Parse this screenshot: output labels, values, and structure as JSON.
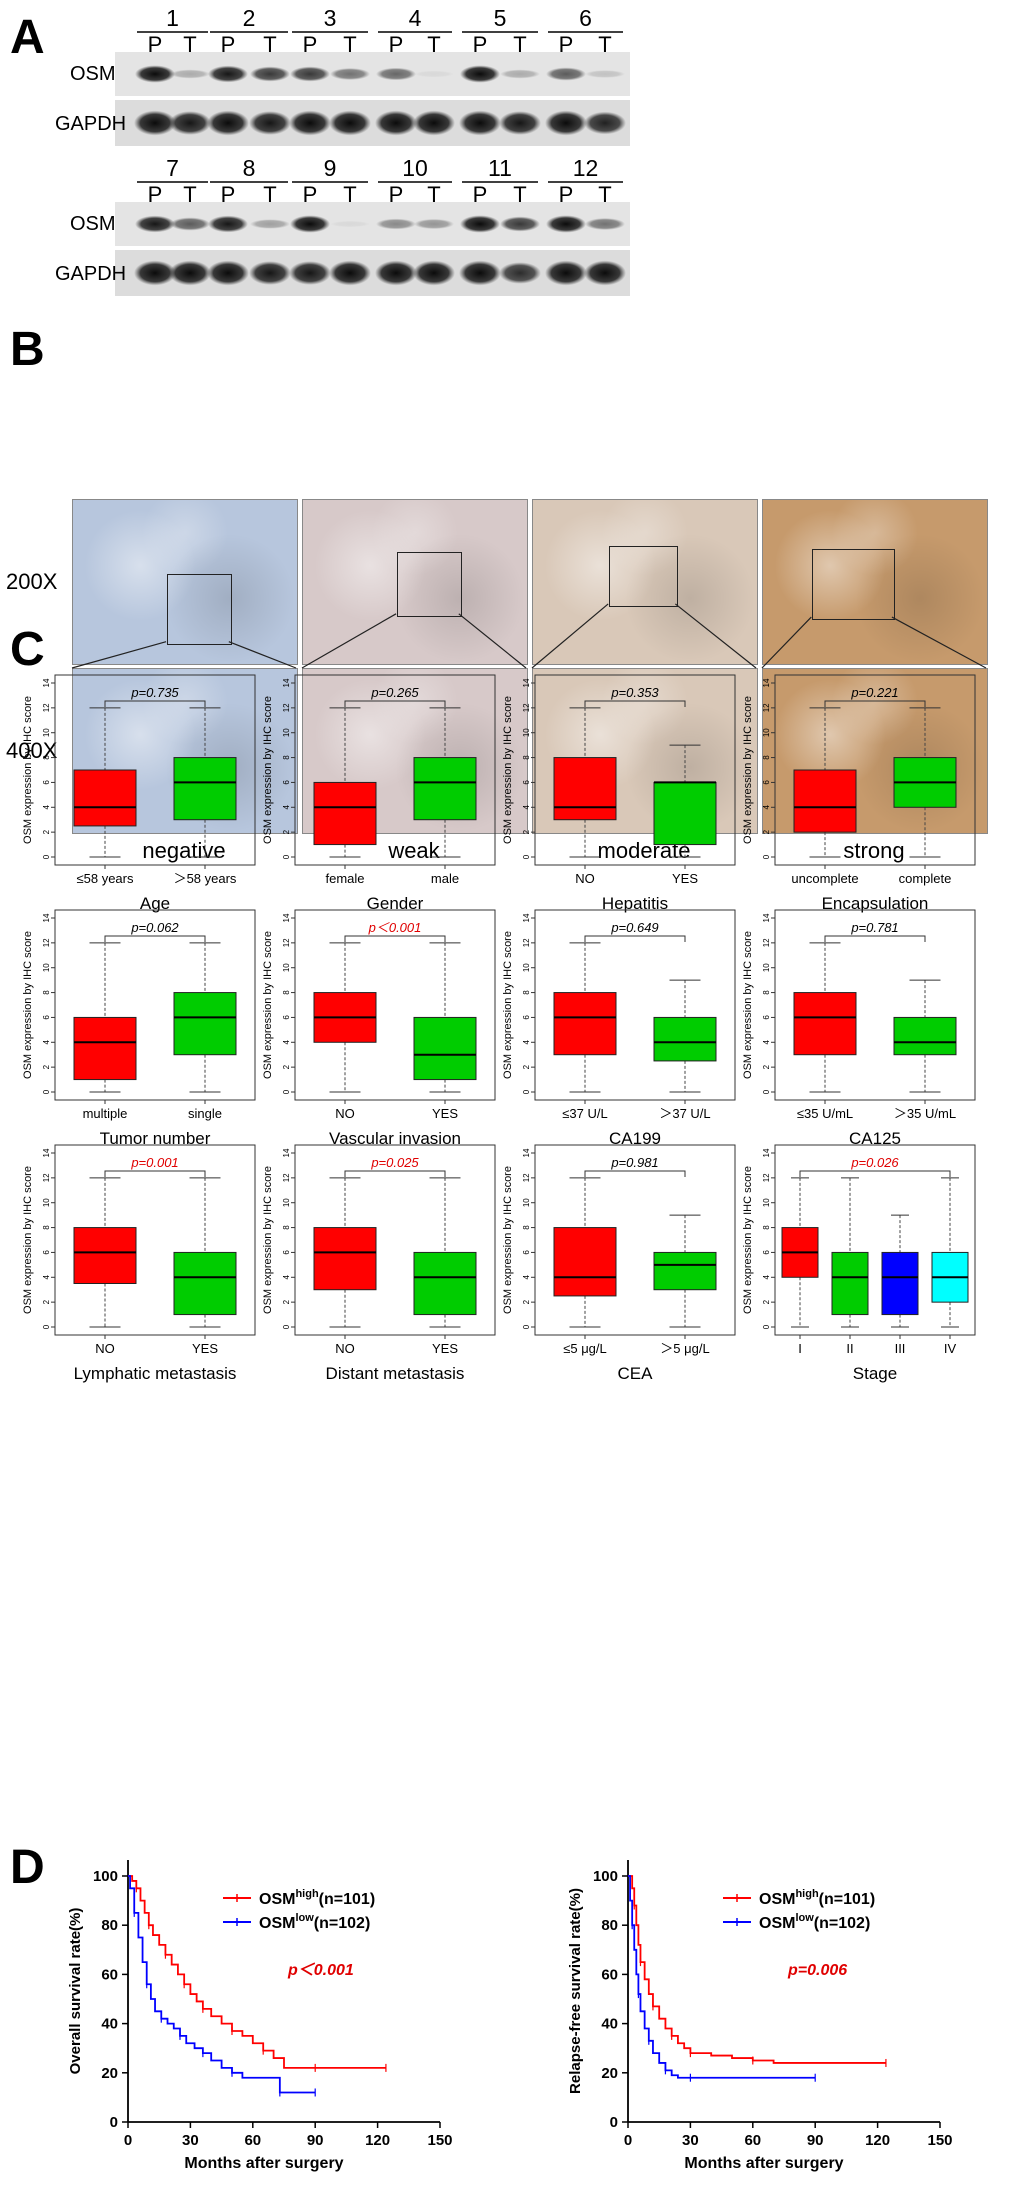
{
  "panels": {
    "a": "A",
    "b": "B",
    "c": "C",
    "d": "D"
  },
  "western": {
    "rows": [
      {
        "lanes": [
          "1",
          "2",
          "3",
          "4",
          "5",
          "6"
        ],
        "bands": [
          "OSM",
          "GAPDH"
        ],
        "pt": [
          "P",
          "T"
        ],
        "osm_intensity": [
          [
            0.95,
            0.25
          ],
          [
            0.9,
            0.75
          ],
          [
            0.75,
            0.5
          ],
          [
            0.55,
            0.05
          ],
          [
            0.95,
            0.25
          ],
          [
            0.6,
            0.15
          ]
        ],
        "gapdh_intensity": [
          [
            0.95,
            0.9
          ],
          [
            0.95,
            0.9
          ],
          [
            0.95,
            0.95
          ],
          [
            0.95,
            0.95
          ],
          [
            0.95,
            0.9
          ],
          [
            0.95,
            0.85
          ]
        ]
      },
      {
        "lanes": [
          "7",
          "8",
          "9",
          "10",
          "11",
          "12"
        ],
        "bands": [
          "OSM",
          "GAPDH"
        ],
        "pt": [
          "P",
          "T"
        ],
        "osm_intensity": [
          [
            0.9,
            0.6
          ],
          [
            0.9,
            0.3
          ],
          [
            0.95,
            0.02
          ],
          [
            0.4,
            0.35
          ],
          [
            0.95,
            0.75
          ],
          [
            0.95,
            0.5
          ]
        ],
        "gapdh_intensity": [
          [
            0.95,
            0.95
          ],
          [
            0.95,
            0.9
          ],
          [
            0.9,
            0.95
          ],
          [
            0.95,
            0.95
          ],
          [
            0.95,
            0.8
          ],
          [
            0.95,
            0.95
          ]
        ]
      }
    ]
  },
  "ihc": {
    "magnifications": [
      "200X",
      "400X"
    ],
    "categories": [
      "negative",
      "weak",
      "moderate",
      "strong"
    ],
    "colors": [
      "#b7c6dd",
      "#d7c9c9",
      "#d9c8b8",
      "#c69a6c"
    ]
  },
  "chart_data": [
    {
      "type": "box",
      "ylabel": "OSM expression by IHC score",
      "xlabel": "Age",
      "p": "p=0.735",
      "significant": false,
      "categories": [
        "≤58 years",
        "＞58 years"
      ],
      "colors": [
        "#ff0000",
        "#00cc00"
      ],
      "boxes": [
        {
          "min": 0,
          "q1": 2.5,
          "median": 4,
          "q3": 7,
          "max": 12
        },
        {
          "min": 0,
          "q1": 3,
          "median": 6,
          "q3": 8,
          "max": 12
        }
      ],
      "yticks": [
        0,
        2,
        4,
        6,
        8,
        10,
        12,
        14
      ],
      "ylim": [
        0,
        14
      ]
    },
    {
      "type": "box",
      "ylabel": "OSM expression by IHC score",
      "xlabel": "Gender",
      "p": "p=0.265",
      "significant": false,
      "categories": [
        "female",
        "male"
      ],
      "colors": [
        "#ff0000",
        "#00cc00"
      ],
      "boxes": [
        {
          "min": 0,
          "q1": 1,
          "median": 4,
          "q3": 6,
          "max": 12
        },
        {
          "min": 0,
          "q1": 3,
          "median": 6,
          "q3": 8,
          "max": 12
        }
      ],
      "yticks": [
        0,
        2,
        4,
        6,
        8,
        10,
        12,
        14
      ],
      "ylim": [
        0,
        14
      ]
    },
    {
      "type": "box",
      "ylabel": "OSM expression by IHC score",
      "xlabel": "Hepatitis",
      "p": "p=0.353",
      "significant": false,
      "categories": [
        "NO",
        "YES"
      ],
      "colors": [
        "#ff0000",
        "#00cc00"
      ],
      "boxes": [
        {
          "min": 0,
          "q1": 3,
          "median": 4,
          "q3": 8,
          "max": 12
        },
        {
          "min": 0,
          "q1": 1,
          "median": 6,
          "q3": 6,
          "max": 9
        }
      ],
      "yticks": [
        0,
        2,
        4,
        6,
        8,
        10,
        12,
        14
      ],
      "ylim": [
        0,
        14
      ]
    },
    {
      "type": "box",
      "ylabel": "OSM expression by IHC score",
      "xlabel": "Encapsulation",
      "p": "p=0.221",
      "significant": false,
      "categories": [
        "uncomplete",
        "complete"
      ],
      "colors": [
        "#ff0000",
        "#00cc00"
      ],
      "boxes": [
        {
          "min": 0,
          "q1": 2,
          "median": 4,
          "q3": 7,
          "max": 12
        },
        {
          "min": 0,
          "q1": 4,
          "median": 6,
          "q3": 8,
          "max": 12
        }
      ],
      "yticks": [
        0,
        2,
        4,
        6,
        8,
        10,
        12,
        14
      ],
      "ylim": [
        0,
        14
      ]
    },
    {
      "type": "box",
      "ylabel": "OSM expression by IHC score",
      "xlabel": "Tumor number",
      "p": "p=0.062",
      "significant": false,
      "categories": [
        "multiple",
        "single"
      ],
      "colors": [
        "#ff0000",
        "#00cc00"
      ],
      "boxes": [
        {
          "min": 0,
          "q1": 1,
          "median": 4,
          "q3": 6,
          "max": 12
        },
        {
          "min": 0,
          "q1": 3,
          "median": 6,
          "q3": 8,
          "max": 12
        }
      ],
      "yticks": [
        0,
        2,
        4,
        6,
        8,
        10,
        12,
        14
      ],
      "ylim": [
        0,
        14
      ]
    },
    {
      "type": "box",
      "ylabel": "OSM expression by IHC score",
      "xlabel": "Vascular invasion",
      "p": "p＜0.001",
      "significant": true,
      "categories": [
        "NO",
        "YES"
      ],
      "colors": [
        "#ff0000",
        "#00cc00"
      ],
      "boxes": [
        {
          "min": 0,
          "q1": 4,
          "median": 6,
          "q3": 8,
          "max": 12
        },
        {
          "min": 0,
          "q1": 1,
          "median": 3,
          "q3": 6,
          "max": 12
        }
      ],
      "yticks": [
        0,
        2,
        4,
        6,
        8,
        10,
        12,
        14
      ],
      "ylim": [
        0,
        14
      ]
    },
    {
      "type": "box",
      "ylabel": "OSM expression by IHC score",
      "xlabel": "CA199",
      "p": "p=0.649",
      "significant": false,
      "categories": [
        "≤37 U/L",
        "＞37 U/L"
      ],
      "colors": [
        "#ff0000",
        "#00cc00"
      ],
      "boxes": [
        {
          "min": 0,
          "q1": 3,
          "median": 6,
          "q3": 8,
          "max": 12
        },
        {
          "min": 0,
          "q1": 2.5,
          "median": 4,
          "q3": 6,
          "max": 9
        }
      ],
      "yticks": [
        0,
        2,
        4,
        6,
        8,
        10,
        12,
        14
      ],
      "ylim": [
        0,
        14
      ]
    },
    {
      "type": "box",
      "ylabel": "OSM expression by IHC score",
      "xlabel": "CA125",
      "p": "p=0.781",
      "significant": false,
      "categories": [
        "≤35 U/mL",
        "＞35 U/mL"
      ],
      "colors": [
        "#ff0000",
        "#00cc00"
      ],
      "boxes": [
        {
          "min": 0,
          "q1": 3,
          "median": 6,
          "q3": 8,
          "max": 12
        },
        {
          "min": 0,
          "q1": 3,
          "median": 4,
          "q3": 6,
          "max": 9
        }
      ],
      "yticks": [
        0,
        2,
        4,
        6,
        8,
        10,
        12,
        14
      ],
      "ylim": [
        0,
        14
      ]
    },
    {
      "type": "box",
      "ylabel": "OSM expression by IHC score",
      "xlabel": "Lymphatic metastasis",
      "p": "p=0.001",
      "significant": true,
      "categories": [
        "NO",
        "YES"
      ],
      "colors": [
        "#ff0000",
        "#00cc00"
      ],
      "boxes": [
        {
          "min": 0,
          "q1": 3.5,
          "median": 6,
          "q3": 8,
          "max": 12
        },
        {
          "min": 0,
          "q1": 1,
          "median": 4,
          "q3": 6,
          "max": 12
        }
      ],
      "yticks": [
        0,
        2,
        4,
        6,
        8,
        10,
        12,
        14
      ],
      "ylim": [
        0,
        14
      ]
    },
    {
      "type": "box",
      "ylabel": "OSM expression by IHC score",
      "xlabel": "Distant metastasis",
      "p": "p=0.025",
      "significant": true,
      "categories": [
        "NO",
        "YES"
      ],
      "colors": [
        "#ff0000",
        "#00cc00"
      ],
      "boxes": [
        {
          "min": 0,
          "q1": 3,
          "median": 6,
          "q3": 8,
          "max": 12
        },
        {
          "min": 0,
          "q1": 1,
          "median": 4,
          "q3": 6,
          "max": 12
        }
      ],
      "yticks": [
        0,
        2,
        4,
        6,
        8,
        10,
        12,
        14
      ],
      "ylim": [
        0,
        14
      ]
    },
    {
      "type": "box",
      "ylabel": "OSM expression by IHC score",
      "xlabel": "CEA",
      "p": "p=0.981",
      "significant": false,
      "categories": [
        "≤5 μg/L",
        "＞5 μg/L"
      ],
      "colors": [
        "#ff0000",
        "#00cc00"
      ],
      "boxes": [
        {
          "min": 0,
          "q1": 2.5,
          "median": 4,
          "q3": 8,
          "max": 12
        },
        {
          "min": 0,
          "q1": 3,
          "median": 5,
          "q3": 6,
          "max": 9
        }
      ],
      "yticks": [
        0,
        2,
        4,
        6,
        8,
        10,
        12,
        14
      ],
      "ylim": [
        0,
        14
      ]
    },
    {
      "type": "box",
      "ylabel": "OSM expression by IHC score",
      "xlabel": "Stage",
      "p": "p=0.026",
      "significant": true,
      "categories": [
        "I",
        "II",
        "III",
        "IV"
      ],
      "colors": [
        "#ff0000",
        "#00cc00",
        "#0000ff",
        "#00ffff"
      ],
      "boxes": [
        {
          "min": 0,
          "q1": 4,
          "median": 6,
          "q3": 8,
          "max": 12
        },
        {
          "min": 0,
          "q1": 1,
          "median": 4,
          "q3": 6,
          "max": 12
        },
        {
          "min": 0,
          "q1": 1,
          "median": 4,
          "q3": 6,
          "max": 9
        },
        {
          "min": 0,
          "q1": 2,
          "median": 4,
          "q3": 6,
          "max": 12
        }
      ],
      "yticks": [
        0,
        2,
        4,
        6,
        8,
        10,
        12,
        14
      ],
      "ylim": [
        0,
        14
      ]
    },
    {
      "type": "line",
      "subtype": "kaplan-meier",
      "ylabel": "Overall survival rate(%)",
      "xlabel": "Months after surgery",
      "xticks": [
        0,
        30,
        60,
        90,
        120,
        150
      ],
      "yticks": [
        0,
        20,
        40,
        60,
        80,
        100
      ],
      "xlim": [
        0,
        150
      ],
      "ylim": [
        0,
        100
      ],
      "p": "p＜0.001",
      "series": [
        {
          "label_main": "OSM",
          "label_sup": "high",
          "label_n": "(n=101)",
          "color": "#ff0000",
          "points": [
            [
              0,
              100
            ],
            [
              2,
              98
            ],
            [
              4,
              95
            ],
            [
              6,
              90
            ],
            [
              8,
              85
            ],
            [
              10,
              80
            ],
            [
              12,
              76
            ],
            [
              15,
              72
            ],
            [
              18,
              68
            ],
            [
              21,
              64
            ],
            [
              24,
              60
            ],
            [
              27,
              56
            ],
            [
              30,
              52
            ],
            [
              33,
              49
            ],
            [
              36,
              46
            ],
            [
              40,
              43
            ],
            [
              45,
              40
            ],
            [
              50,
              37
            ],
            [
              55,
              35
            ],
            [
              60,
              32
            ],
            [
              65,
              29
            ],
            [
              70,
              26
            ],
            [
              75,
              22
            ],
            [
              90,
              22
            ],
            [
              124,
              22
            ]
          ]
        },
        {
          "label_main": "OSM",
          "label_sup": "low",
          "label_n": "(n=102)",
          "color": "#0000ff",
          "points": [
            [
              0,
              100
            ],
            [
              1,
              95
            ],
            [
              3,
              85
            ],
            [
              5,
              75
            ],
            [
              7,
              65
            ],
            [
              9,
              56
            ],
            [
              11,
              50
            ],
            [
              13,
              45
            ],
            [
              16,
              42
            ],
            [
              19,
              40
            ],
            [
              22,
              38
            ],
            [
              25,
              35
            ],
            [
              28,
              32
            ],
            [
              32,
              30
            ],
            [
              36,
              28
            ],
            [
              40,
              25
            ],
            [
              45,
              22
            ],
            [
              50,
              20
            ],
            [
              55,
              18
            ],
            [
              70,
              18
            ],
            [
              73,
              12
            ],
            [
              90,
              12
            ]
          ]
        }
      ]
    },
    {
      "type": "line",
      "subtype": "kaplan-meier",
      "ylabel": "Relapse-free survival rate(%)",
      "xlabel": "Months after surgery",
      "xticks": [
        0,
        30,
        60,
        90,
        120,
        150
      ],
      "yticks": [
        0,
        20,
        40,
        60,
        80,
        100
      ],
      "xlim": [
        0,
        150
      ],
      "ylim": [
        0,
        100
      ],
      "p": "p=0.006",
      "series": [
        {
          "label_main": "OSM",
          "label_sup": "high",
          "label_n": "(n=101)",
          "color": "#ff0000",
          "points": [
            [
              0,
              100
            ],
            [
              2,
              95
            ],
            [
              3,
              88
            ],
            [
              4,
              80
            ],
            [
              5,
              72
            ],
            [
              6,
              65
            ],
            [
              8,
              58
            ],
            [
              10,
              52
            ],
            [
              12,
              47
            ],
            [
              15,
              42
            ],
            [
              18,
              38
            ],
            [
              21,
              35
            ],
            [
              24,
              32
            ],
            [
              27,
              30
            ],
            [
              30,
              28
            ],
            [
              40,
              27
            ],
            [
              50,
              26
            ],
            [
              60,
              25
            ],
            [
              70,
              24
            ],
            [
              124,
              24
            ]
          ]
        },
        {
          "label_main": "OSM",
          "label_sup": "low",
          "label_n": "(n=102)",
          "color": "#0000ff",
          "points": [
            [
              0,
              100
            ],
            [
              1,
              90
            ],
            [
              2,
              80
            ],
            [
              3,
              70
            ],
            [
              4,
              60
            ],
            [
              5,
              52
            ],
            [
              6,
              45
            ],
            [
              8,
              38
            ],
            [
              10,
              33
            ],
            [
              12,
              28
            ],
            [
              15,
              24
            ],
            [
              18,
              21
            ],
            [
              21,
              19
            ],
            [
              24,
              18
            ],
            [
              30,
              18
            ],
            [
              90,
              18
            ]
          ]
        }
      ]
    }
  ]
}
